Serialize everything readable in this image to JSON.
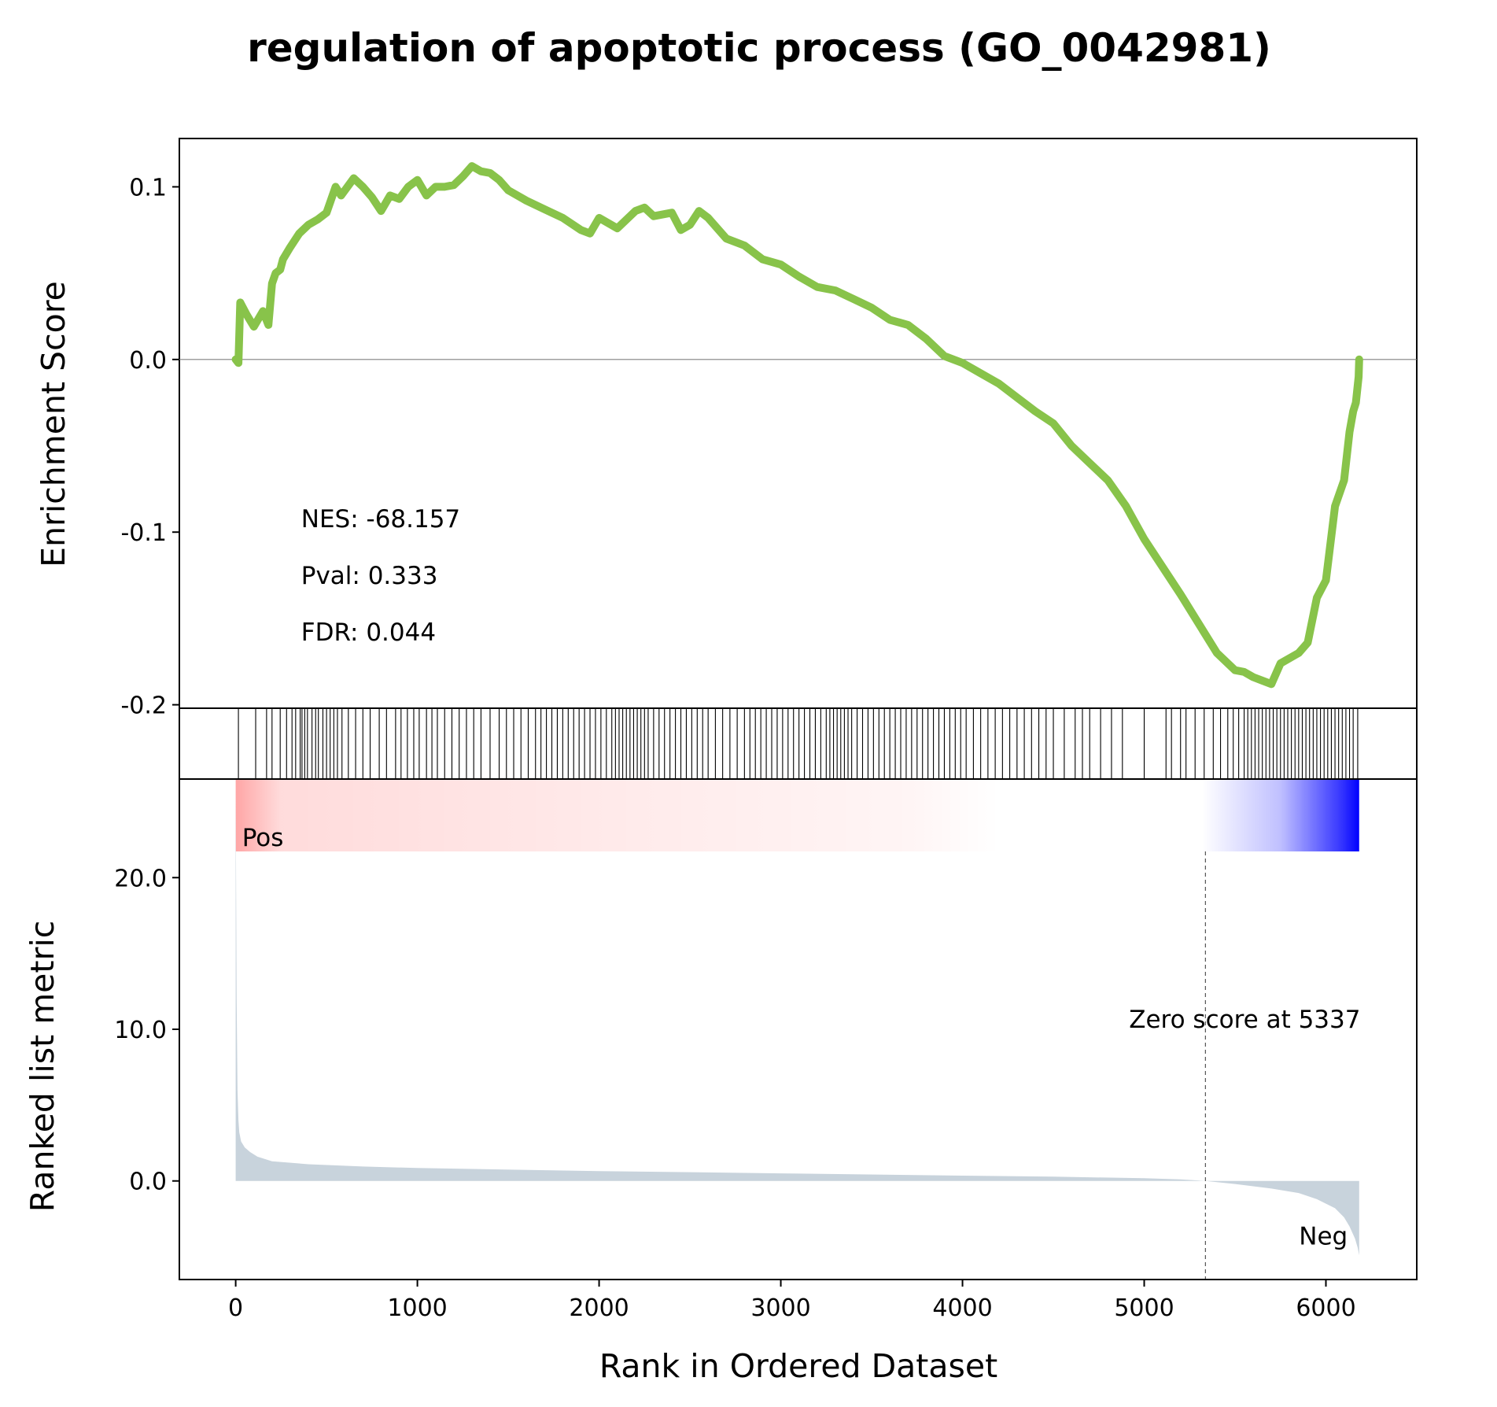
{
  "chart_data": {
    "type": "line",
    "title": "regulation of apoptotic process (GO_0042981)",
    "xlabel": "Rank in Ordered Dataset",
    "xlim": [
      -310,
      6500
    ],
    "x_ticks": [
      "0",
      "1000",
      "2000",
      "3000",
      "4000",
      "5000",
      "6000"
    ],
    "x_tick_values": [
      0,
      1000,
      2000,
      3000,
      4000,
      5000,
      6000
    ],
    "colors": {
      "enrichment_line": "#88c34a",
      "metric_fill": "#c8d3dc",
      "pos": "#ff0000",
      "neg": "#0000ff",
      "hits": "#000000",
      "zero_line": "#808080"
    },
    "enrichment_panel": {
      "ylabel": "Enrichment Score",
      "ylim": [
        -0.202,
        0.128
      ],
      "y_ticks": [
        "0.1",
        "0.0",
        "-0.1",
        "-0.2"
      ],
      "y_tick_values": [
        0.1,
        0.0,
        -0.1,
        -0.2
      ],
      "stats": [
        "NES: -68.157",
        "Pval: 0.333",
        "FDR: 0.044"
      ],
      "series": [
        {
          "x": [
            0,
            15,
            25,
            60,
            100,
            150,
            180,
            200,
            220,
            245,
            260,
            300,
            350,
            400,
            450,
            500,
            550,
            580,
            650,
            700,
            750,
            800,
            850,
            900,
            950,
            1000,
            1050,
            1100,
            1150,
            1200,
            1250,
            1300,
            1350,
            1400,
            1450,
            1500,
            1600,
            1700,
            1800,
            1900,
            1950,
            2000,
            2100,
            2200,
            2250,
            2300,
            2400,
            2450,
            2500,
            2550,
            2600,
            2700,
            2800,
            2900,
            3000,
            3100,
            3200,
            3300,
            3400,
            3500,
            3600,
            3700,
            3800,
            3900,
            4000,
            4100,
            4200,
            4300,
            4400,
            4500,
            4600,
            4700,
            4800,
            4900,
            5000,
            5100,
            5200,
            5300,
            5400,
            5500,
            5550,
            5600,
            5650,
            5700,
            5750,
            5800,
            5850,
            5900,
            5950,
            6000,
            6050,
            6100,
            6130,
            6150,
            6165,
            6180,
            6183
          ],
          "y": [
            0.0,
            -0.002,
            0.033,
            0.026,
            0.019,
            0.028,
            0.02,
            0.044,
            0.05,
            0.052,
            0.058,
            0.065,
            0.073,
            0.078,
            0.081,
            0.085,
            0.1,
            0.095,
            0.105,
            0.1,
            0.094,
            0.086,
            0.095,
            0.093,
            0.1,
            0.104,
            0.095,
            0.1,
            0.1,
            0.101,
            0.106,
            0.112,
            0.109,
            0.108,
            0.104,
            0.098,
            0.092,
            0.087,
            0.082,
            0.075,
            0.073,
            0.082,
            0.076,
            0.086,
            0.088,
            0.083,
            0.085,
            0.075,
            0.078,
            0.086,
            0.082,
            0.07,
            0.066,
            0.058,
            0.055,
            0.048,
            0.042,
            0.04,
            0.035,
            0.03,
            0.023,
            0.02,
            0.012,
            0.002,
            -0.002,
            -0.008,
            -0.014,
            -0.022,
            -0.03,
            -0.037,
            -0.05,
            -0.06,
            -0.07,
            -0.085,
            -0.104,
            -0.12,
            -0.136,
            -0.153,
            -0.17,
            -0.18,
            -0.181,
            -0.184,
            -0.186,
            -0.188,
            -0.176,
            -0.173,
            -0.17,
            -0.164,
            -0.138,
            -0.128,
            -0.085,
            -0.07,
            -0.042,
            -0.03,
            -0.025,
            -0.01,
            0.0
          ]
        }
      ]
    },
    "hits_panel": {
      "hit_positions": [
        15,
        110,
        170,
        200,
        245,
        280,
        310,
        330,
        355,
        365,
        380,
        395,
        420,
        440,
        455,
        480,
        500,
        520,
        540,
        560,
        585,
        620,
        660,
        700,
        740,
        790,
        830,
        880,
        910,
        945,
        980,
        1010,
        1050,
        1080,
        1110,
        1150,
        1190,
        1230,
        1270,
        1310,
        1350,
        1400,
        1450,
        1490,
        1530,
        1570,
        1610,
        1650,
        1680,
        1710,
        1740,
        1770,
        1800,
        1830,
        1860,
        1890,
        1920,
        1950,
        1980,
        2010,
        2040,
        2070,
        2090,
        2110,
        2130,
        2150,
        2170,
        2190,
        2210,
        2230,
        2250,
        2270,
        2300,
        2330,
        2360,
        2390,
        2420,
        2450,
        2480,
        2510,
        2540,
        2570,
        2600,
        2640,
        2680,
        2720,
        2760,
        2800,
        2830,
        2860,
        2890,
        2920,
        2950,
        2980,
        3010,
        3040,
        3070,
        3100,
        3130,
        3160,
        3190,
        3220,
        3250,
        3270,
        3290,
        3310,
        3330,
        3350,
        3370,
        3390,
        3420,
        3450,
        3480,
        3510,
        3540,
        3570,
        3600,
        3630,
        3660,
        3690,
        3720,
        3750,
        3780,
        3810,
        3840,
        3870,
        3900,
        3930,
        3960,
        3990,
        4020,
        4060,
        4100,
        4140,
        4180,
        4220,
        4260,
        4300,
        4340,
        4380,
        4420,
        4460,
        4500,
        4560,
        4620,
        4660,
        4700,
        4760,
        4820,
        4880,
        5000,
        5120,
        5150,
        5200,
        5230,
        5280,
        5330,
        5380,
        5420,
        5460,
        5490,
        5520,
        5550,
        5570,
        5590,
        5610,
        5630,
        5650,
        5670,
        5690,
        5710,
        5730,
        5750,
        5770,
        5790,
        5810,
        5830,
        5850,
        5870,
        5890,
        5910,
        5930,
        5950,
        5970,
        5990,
        6010,
        6030,
        6050,
        6070,
        6090,
        6110,
        6130,
        6150,
        6175
      ]
    },
    "gradient_bar": {
      "from": "#ff0000",
      "to": "#0000ff"
    },
    "metric_panel": {
      "ylabel": "Ranked list metric",
      "ylim": [
        -6.5,
        26.5
      ],
      "y_ticks": [
        "20.0",
        "10.0",
        "0.0"
      ],
      "y_tick_values": [
        20,
        10,
        0
      ],
      "pos_label": "Pos",
      "neg_label": "Neg",
      "zero_annotation": "Zero score at 5337",
      "zero_cross_x": 5337,
      "series": [
        {
          "x": [
            0,
            5,
            10,
            15,
            20,
            30,
            50,
            80,
            120,
            200,
            400,
            700,
            1000,
            2000,
            3000,
            4000,
            4500,
            5000,
            5200,
            5337,
            5500,
            5700,
            5850,
            5950,
            6050,
            6100,
            6130,
            6160,
            6175,
            6183
          ],
          "y": [
            25.7,
            12.0,
            6.0,
            4.0,
            3.2,
            2.6,
            2.2,
            1.9,
            1.6,
            1.3,
            1.1,
            0.95,
            0.85,
            0.65,
            0.5,
            0.35,
            0.28,
            0.18,
            0.1,
            0.0,
            -0.2,
            -0.5,
            -0.8,
            -1.2,
            -1.8,
            -2.4,
            -3.0,
            -3.8,
            -4.4,
            -4.9
          ]
        }
      ]
    }
  }
}
